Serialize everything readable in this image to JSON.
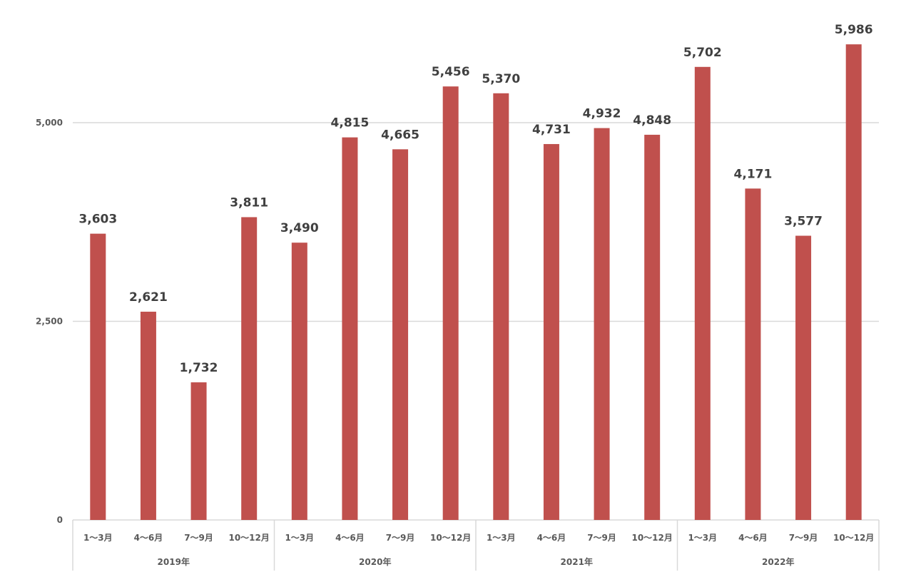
{
  "chart_data": {
    "type": "bar",
    "title": "",
    "xlabel": "",
    "ylabel": "",
    "ylim": [
      0,
      6000
    ],
    "yticks": [
      0,
      2500,
      5000
    ],
    "ytick_labels": [
      "0",
      "2,500",
      "5,000"
    ],
    "grid": true,
    "legend": "none",
    "bar_color": "#C0504D",
    "groups": [
      {
        "label": "2019年",
        "categories": [
          "1〜3月",
          "4〜6月",
          "7〜9月",
          "10〜12月"
        ],
        "values": [
          3603,
          2621,
          1732,
          3811
        ],
        "value_labels": [
          "3,603",
          "2,621",
          "1,732",
          "3,811"
        ]
      },
      {
        "label": "2020年",
        "categories": [
          "1〜3月",
          "4〜6月",
          "7〜9月",
          "10〜12月"
        ],
        "values": [
          3490,
          4815,
          4665,
          5456
        ],
        "value_labels": [
          "3,490",
          "4,815",
          "4,665",
          "5,456"
        ]
      },
      {
        "label": "2021年",
        "categories": [
          "1〜3月",
          "4〜6月",
          "7〜9月",
          "10〜12月"
        ],
        "values": [
          5370,
          4731,
          4932,
          4848
        ],
        "value_labels": [
          "5,370",
          "4,731",
          "4,932",
          "4,848"
        ]
      },
      {
        "label": "2022年",
        "categories": [
          "1〜3月",
          "4〜6月",
          "7〜9月",
          "10〜12月"
        ],
        "values": [
          5702,
          4171,
          3577,
          5986
        ],
        "value_labels": [
          "5,702",
          "4,171",
          "3,577",
          "5,986"
        ]
      }
    ]
  }
}
